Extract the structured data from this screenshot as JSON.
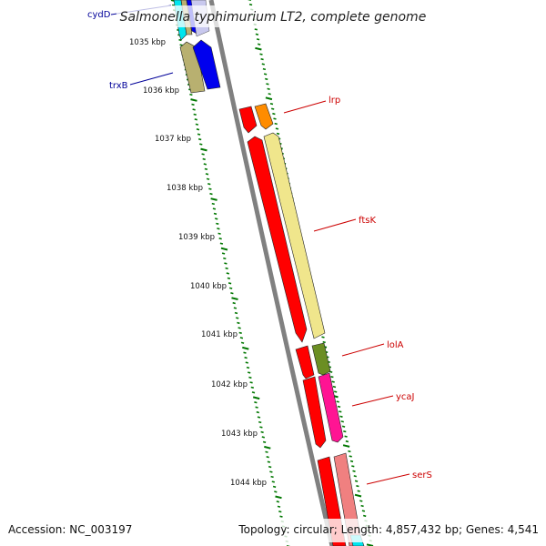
{
  "title": "Salmonella typhimurium LT2, complete genome",
  "footer": {
    "accession": "Accession: NC_003197",
    "topology": "Topology: circular; Length: 4,857,432 bp; Genes: 4,541"
  },
  "kbp_labels": [
    "1035 kbp",
    "1036 kbp",
    "1037 kbp",
    "1038 kbp",
    "1039 kbp",
    "1040 kbp",
    "1041 kbp",
    "1042 kbp",
    "1043 kbp",
    "1044 kbp"
  ],
  "gene_labels": {
    "cydD": "cydD",
    "trxB": "trxB",
    "lrp": "lrp",
    "ftsK": "ftsK",
    "lolA": "lolA",
    "ycaJ": "ycaJ",
    "serS": "serS"
  },
  "colors": {
    "backbone": "#808080",
    "tick_green": "#007700",
    "cds_red": "#ff0000",
    "label_red": "#cc0000",
    "label_blue": "#000099",
    "blue": "#0000ee",
    "cyan": "#00e5ee",
    "khaki": "#b8b070",
    "orange": "#ff8c00",
    "pale_yellow": "#f0e68c",
    "olive": "#6b8e23",
    "magenta": "#ff1493",
    "salmon": "#f08080"
  }
}
